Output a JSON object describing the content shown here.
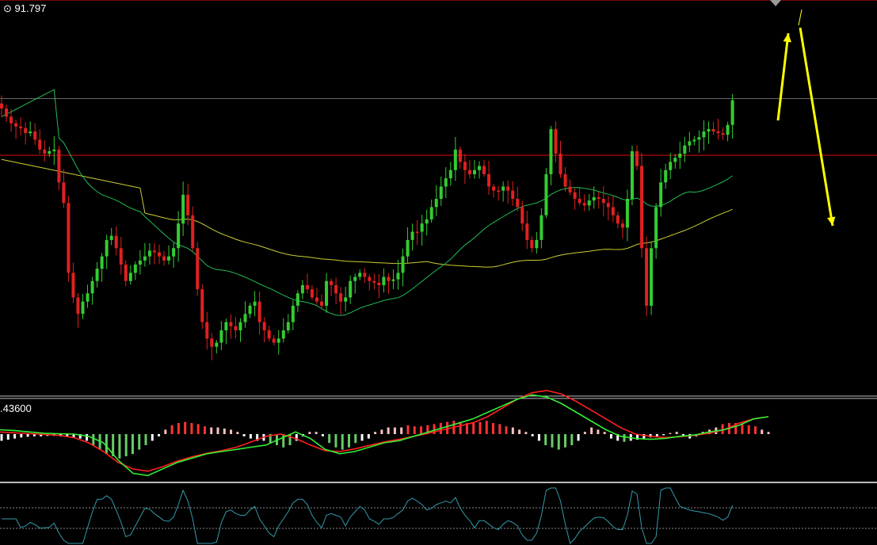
{
  "chart_data": {
    "type": "candlestick",
    "price_label": "91.797",
    "macd_label": ".43600",
    "colors": {
      "background": "#000000",
      "up": "#33cc33",
      "down": "#e02020",
      "ma_fast": "#22bb55",
      "ma_slow": "#cccc33",
      "level_line": "#dd1111",
      "mid_line": "#666666",
      "arrow": "#ffff00",
      "separator": "#bbbbbb",
      "macd_signal": "#ff2020",
      "macd_main": "#33ee33",
      "hist_pos_hi": "#ff3333",
      "hist_pos_lo": "#ffc0c0",
      "hist_neg_hi": "#66cc66",
      "hist_neg_lo": "#ffffff",
      "osc_line": "#3399aa",
      "osc_levels": "#888888"
    },
    "price_range": [
      -510,
      -28
    ],
    "levels": [
      -28,
      -217
    ],
    "mid_level": -148,
    "closes": [
      -160,
      -170,
      -178,
      -182,
      -184,
      -190,
      -188,
      -198,
      -210,
      -215,
      -212,
      -210,
      -250,
      -275,
      -360,
      -390,
      -410,
      -395,
      -385,
      -370,
      -355,
      -340,
      -320,
      -315,
      -330,
      -350,
      -370,
      -360,
      -350,
      -345,
      -340,
      -333,
      -335,
      -340,
      -345,
      -340,
      -330,
      -300,
      -265,
      -290,
      -330,
      -380,
      -420,
      -440,
      -450,
      -445,
      -430,
      -420,
      -425,
      -430,
      -420,
      -410,
      -400,
      -395,
      -420,
      -430,
      -440,
      -445,
      -440,
      -430,
      -420,
      -400,
      -385,
      -375,
      -380,
      -390,
      -395,
      -400,
      -370,
      -375,
      -385,
      -395,
      -390,
      -370,
      -365,
      -360,
      -365,
      -370,
      -372,
      -375,
      -365,
      -370,
      -368,
      -360,
      -340,
      -320,
      -310,
      -310,
      -300,
      -295,
      -280,
      -270,
      -255,
      -245,
      -235,
      -210,
      -225,
      -235,
      -240,
      -235,
      -230,
      -240,
      -255,
      -260,
      -260,
      -255,
      -260,
      -270,
      -280,
      -300,
      -320,
      -330,
      -320,
      -290,
      -240,
      -185,
      -215,
      -240,
      -255,
      -262,
      -270,
      -275,
      -278,
      -272,
      -268,
      -270,
      -275,
      -280,
      -290,
      -300,
      -305,
      -270,
      -212,
      -230,
      -330,
      -400,
      -330,
      -280,
      -250,
      -235,
      -225,
      -220,
      -215,
      -205,
      -200,
      -198,
      -195,
      -188,
      -185,
      -188,
      -190,
      -192,
      -180,
      -150
    ],
    "macd_main": [
      0.1,
      0.08,
      0.05,
      0.02,
      0.01,
      0.0,
      -0.05,
      -0.2,
      -0.6,
      -0.9,
      -0.95,
      -0.8,
      -0.65,
      -0.55,
      -0.45,
      -0.4,
      -0.35,
      -0.3,
      -0.25,
      -0.1,
      0.05,
      -0.1,
      -0.35,
      -0.45,
      -0.4,
      -0.3,
      -0.2,
      -0.15,
      -0.05,
      0.05,
      0.15,
      0.25,
      0.35,
      0.5,
      0.65,
      0.8,
      0.9,
      0.85,
      0.7,
      0.5,
      0.3,
      0.1,
      -0.05,
      -0.1,
      -0.12,
      -0.1,
      -0.05,
      -0.02,
      0.05,
      0.1,
      0.2,
      0.35,
      0.4
    ],
    "macd_signal": [
      0.05,
      0.03,
      0.01,
      -0.01,
      -0.03,
      -0.08,
      -0.2,
      -0.4,
      -0.65,
      -0.8,
      -0.85,
      -0.75,
      -0.62,
      -0.52,
      -0.44,
      -0.38,
      -0.3,
      -0.18,
      -0.05,
      0.0,
      -0.1,
      -0.25,
      -0.38,
      -0.4,
      -0.34,
      -0.26,
      -0.18,
      -0.12,
      -0.05,
      0.02,
      0.1,
      0.18,
      0.26,
      0.4,
      0.6,
      0.8,
      0.95,
      1.0,
      0.92,
      0.75,
      0.55,
      0.35,
      0.15,
      0.0,
      -0.05,
      -0.08,
      -0.06,
      -0.03,
      0.02,
      0.1,
      0.25,
      0.35,
      0.4
    ],
    "macd_hist": [
      -0.3,
      -0.25,
      -0.2,
      -0.15,
      -0.12,
      -0.1,
      -0.1,
      -0.08,
      -0.08,
      -0.1,
      -0.12,
      -0.15,
      -0.2,
      -0.3,
      -0.5,
      -0.7,
      -0.9,
      -1.0,
      -1.1,
      -1.0,
      -0.9,
      -0.7,
      -0.5,
      -0.3,
      -0.1,
      0.2,
      0.4,
      0.5,
      0.55,
      0.5,
      0.45,
      0.35,
      0.3,
      0.3,
      0.25,
      0.2,
      0.1,
      -0.1,
      -0.2,
      -0.3,
      -0.3,
      -0.4,
      -0.5,
      -0.6,
      -0.5,
      -0.3,
      -0.1,
      0.1,
      0.1,
      -0.1,
      -0.4,
      -0.6,
      -0.7,
      -0.6,
      -0.4,
      -0.3,
      -0.2,
      0.1,
      0.2,
      0.3,
      0.3,
      0.3,
      0.4,
      0.35,
      0.35,
      0.4,
      0.45,
      0.5,
      0.55,
      0.6,
      0.55,
      0.5,
      0.5,
      0.55,
      0.6,
      0.5,
      0.45,
      0.35,
      0.3,
      0.2,
      0.1,
      -0.1,
      -0.3,
      -0.5,
      -0.6,
      -0.7,
      -0.6,
      -0.5,
      -0.3,
      0.1,
      0.3,
      0.2,
      0.1,
      -0.2,
      -0.3,
      -0.35,
      -0.3,
      -0.25,
      -0.2,
      -0.15,
      -0.1,
      -0.05,
      0.05,
      0.1,
      -0.1,
      -0.2,
      -0.1,
      0.1,
      0.2,
      0.3,
      0.45,
      0.5,
      0.5,
      0.45,
      0.4,
      0.35,
      0.2,
      0.1
    ]
  }
}
